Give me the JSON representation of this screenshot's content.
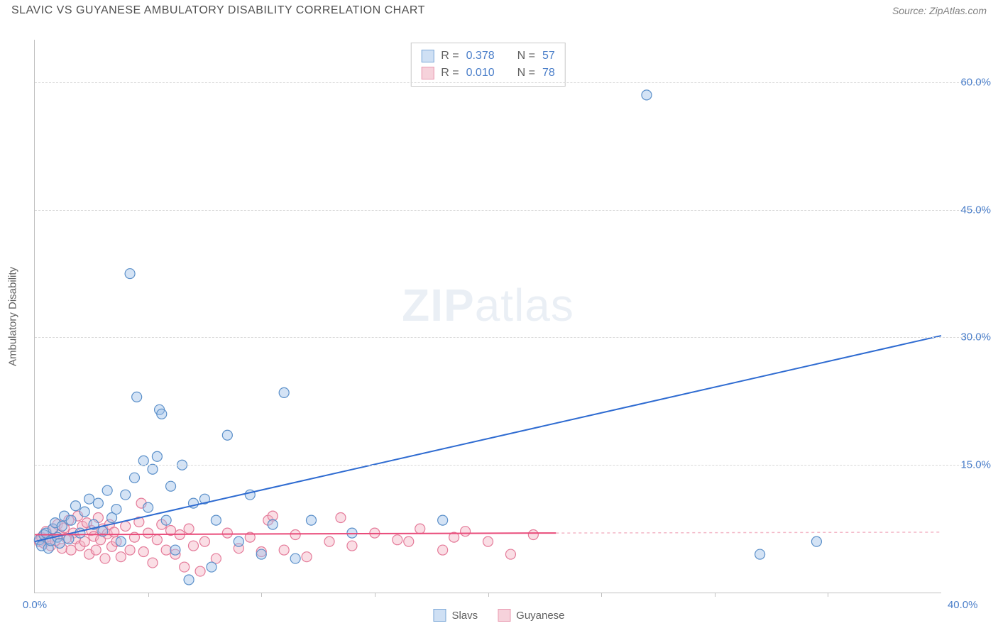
{
  "header": {
    "title": "SLAVIC VS GUYANESE AMBULATORY DISABILITY CORRELATION CHART",
    "source_label": "Source: ZipAtlas.com"
  },
  "y_axis_label": "Ambulatory Disability",
  "watermark": {
    "zip": "ZIP",
    "atlas": "atlas"
  },
  "chart": {
    "type": "scatter",
    "xlim": [
      0,
      40
    ],
    "ylim": [
      0,
      65
    ],
    "x_ticks": [
      0,
      40
    ],
    "x_tick_labels": [
      "0.0%",
      "40.0%"
    ],
    "x_minor_ticks": [
      5,
      10,
      15,
      20,
      25,
      30,
      35
    ],
    "y_ticks": [
      15,
      30,
      45,
      60
    ],
    "y_tick_labels": [
      "15.0%",
      "30.0%",
      "45.0%",
      "60.0%"
    ],
    "background_color": "#ffffff",
    "grid_color": "#d8d8d8",
    "axis_color": "#c0c0c0",
    "marker_radius": 7,
    "marker_opacity": 0.45,
    "series": [
      {
        "name": "Slavs",
        "color_fill": "#9fc2e8",
        "color_stroke": "#5a8fc9",
        "R": "0.378",
        "N": "57",
        "trend": {
          "x1": 0,
          "y1": 6.0,
          "x2": 40,
          "y2": 30.2,
          "color": "#2e6bd1",
          "width": 2
        },
        "points": [
          [
            0.2,
            6.2
          ],
          [
            0.3,
            5.5
          ],
          [
            0.4,
            6.8
          ],
          [
            0.5,
            7.0
          ],
          [
            0.6,
            5.2
          ],
          [
            0.7,
            6.1
          ],
          [
            0.8,
            7.5
          ],
          [
            0.9,
            8.2
          ],
          [
            1.0,
            6.5
          ],
          [
            1.1,
            5.8
          ],
          [
            1.2,
            7.8
          ],
          [
            1.3,
            9.0
          ],
          [
            1.5,
            6.3
          ],
          [
            1.6,
            8.5
          ],
          [
            1.8,
            10.2
          ],
          [
            2.0,
            7.0
          ],
          [
            2.2,
            9.5
          ],
          [
            2.4,
            11.0
          ],
          [
            2.6,
            8.0
          ],
          [
            2.8,
            10.5
          ],
          [
            3.0,
            7.2
          ],
          [
            3.2,
            12.0
          ],
          [
            3.4,
            8.8
          ],
          [
            3.6,
            9.8
          ],
          [
            3.8,
            6.0
          ],
          [
            4.0,
            11.5
          ],
          [
            4.2,
            37.5
          ],
          [
            4.4,
            13.5
          ],
          [
            4.5,
            23.0
          ],
          [
            4.8,
            15.5
          ],
          [
            5.0,
            10.0
          ],
          [
            5.2,
            14.5
          ],
          [
            5.4,
            16.0
          ],
          [
            5.5,
            21.5
          ],
          [
            5.6,
            21.0
          ],
          [
            5.8,
            8.5
          ],
          [
            6.0,
            12.5
          ],
          [
            6.2,
            5.0
          ],
          [
            6.5,
            15.0
          ],
          [
            6.8,
            1.5
          ],
          [
            7.0,
            10.5
          ],
          [
            7.5,
            11.0
          ],
          [
            7.8,
            3.0
          ],
          [
            8.0,
            8.5
          ],
          [
            8.5,
            18.5
          ],
          [
            9.0,
            6.0
          ],
          [
            9.5,
            11.5
          ],
          [
            10.0,
            4.5
          ],
          [
            10.5,
            8.0
          ],
          [
            11.0,
            23.5
          ],
          [
            11.5,
            4.0
          ],
          [
            12.2,
            8.5
          ],
          [
            14.0,
            7.0
          ],
          [
            18.0,
            8.5
          ],
          [
            27.0,
            58.5
          ],
          [
            32.0,
            4.5
          ],
          [
            34.5,
            6.0
          ]
        ]
      },
      {
        "name": "Guyanese",
        "color_fill": "#f3b6c6",
        "color_stroke": "#e47a99",
        "R": "0.010",
        "N": "78",
        "trend_solid": {
          "x1": 0,
          "y1": 6.8,
          "x2": 23,
          "y2": 7.0,
          "color": "#e94b7a",
          "width": 2
        },
        "trend_dash": {
          "x1": 23,
          "y1": 7.0,
          "x2": 40,
          "y2": 7.1,
          "color": "#f3b6c6",
          "width": 1.5,
          "dash": "4 4"
        },
        "points": [
          [
            0.2,
            6.0
          ],
          [
            0.3,
            6.5
          ],
          [
            0.4,
            5.8
          ],
          [
            0.5,
            7.2
          ],
          [
            0.6,
            6.2
          ],
          [
            0.7,
            5.5
          ],
          [
            0.8,
            7.5
          ],
          [
            0.9,
            6.1
          ],
          [
            1.0,
            8.0
          ],
          [
            1.1,
            6.8
          ],
          [
            1.2,
            5.2
          ],
          [
            1.3,
            7.6
          ],
          [
            1.4,
            6.4
          ],
          [
            1.5,
            8.5
          ],
          [
            1.6,
            5.0
          ],
          [
            1.7,
            7.0
          ],
          [
            1.8,
            6.3
          ],
          [
            1.9,
            9.0
          ],
          [
            2.0,
            5.5
          ],
          [
            2.1,
            7.8
          ],
          [
            2.2,
            6.0
          ],
          [
            2.3,
            8.2
          ],
          [
            2.4,
            4.5
          ],
          [
            2.5,
            7.3
          ],
          [
            2.6,
            6.6
          ],
          [
            2.7,
            5.0
          ],
          [
            2.8,
            8.8
          ],
          [
            2.9,
            6.2
          ],
          [
            3.0,
            7.5
          ],
          [
            3.1,
            4.0
          ],
          [
            3.2,
            6.9
          ],
          [
            3.3,
            8.0
          ],
          [
            3.4,
            5.4
          ],
          [
            3.5,
            7.1
          ],
          [
            3.6,
            6.0
          ],
          [
            3.8,
            4.2
          ],
          [
            4.0,
            7.8
          ],
          [
            4.2,
            5.0
          ],
          [
            4.4,
            6.5
          ],
          [
            4.6,
            8.3
          ],
          [
            4.7,
            10.5
          ],
          [
            4.8,
            4.8
          ],
          [
            5.0,
            7.0
          ],
          [
            5.2,
            3.5
          ],
          [
            5.4,
            6.2
          ],
          [
            5.6,
            8.0
          ],
          [
            5.8,
            5.0
          ],
          [
            6.0,
            7.3
          ],
          [
            6.2,
            4.5
          ],
          [
            6.4,
            6.8
          ],
          [
            6.6,
            3.0
          ],
          [
            6.8,
            7.5
          ],
          [
            7.0,
            5.5
          ],
          [
            7.3,
            2.5
          ],
          [
            7.5,
            6.0
          ],
          [
            8.0,
            4.0
          ],
          [
            8.5,
            7.0
          ],
          [
            9.0,
            5.2
          ],
          [
            9.5,
            6.5
          ],
          [
            10.0,
            4.8
          ],
          [
            10.3,
            8.5
          ],
          [
            10.5,
            9.0
          ],
          [
            11.0,
            5.0
          ],
          [
            11.5,
            6.8
          ],
          [
            12.0,
            4.2
          ],
          [
            13.0,
            6.0
          ],
          [
            13.5,
            8.8
          ],
          [
            14.0,
            5.5
          ],
          [
            15.0,
            7.0
          ],
          [
            16.0,
            6.2
          ],
          [
            16.5,
            6.0
          ],
          [
            17.0,
            7.5
          ],
          [
            18.0,
            5.0
          ],
          [
            18.5,
            6.5
          ],
          [
            19.0,
            7.2
          ],
          [
            20.0,
            6.0
          ],
          [
            21.0,
            4.5
          ],
          [
            22.0,
            6.8
          ]
        ]
      }
    ]
  },
  "stats_legend": {
    "rows": [
      {
        "swatch_fill": "#cfe0f4",
        "swatch_border": "#7da8d8",
        "r_label": "R =",
        "r_val": "0.378",
        "n_label": "N =",
        "n_val": "57"
      },
      {
        "swatch_fill": "#f6d2db",
        "swatch_border": "#e999b0",
        "r_label": "R =",
        "r_val": "0.010",
        "n_label": "N =",
        "n_val": "78"
      }
    ]
  },
  "bottom_legend": {
    "items": [
      {
        "label": "Slavs",
        "swatch_fill": "#cfe0f4",
        "swatch_border": "#7da8d8"
      },
      {
        "label": "Guyanese",
        "swatch_fill": "#f6d2db",
        "swatch_border": "#e999b0"
      }
    ]
  }
}
